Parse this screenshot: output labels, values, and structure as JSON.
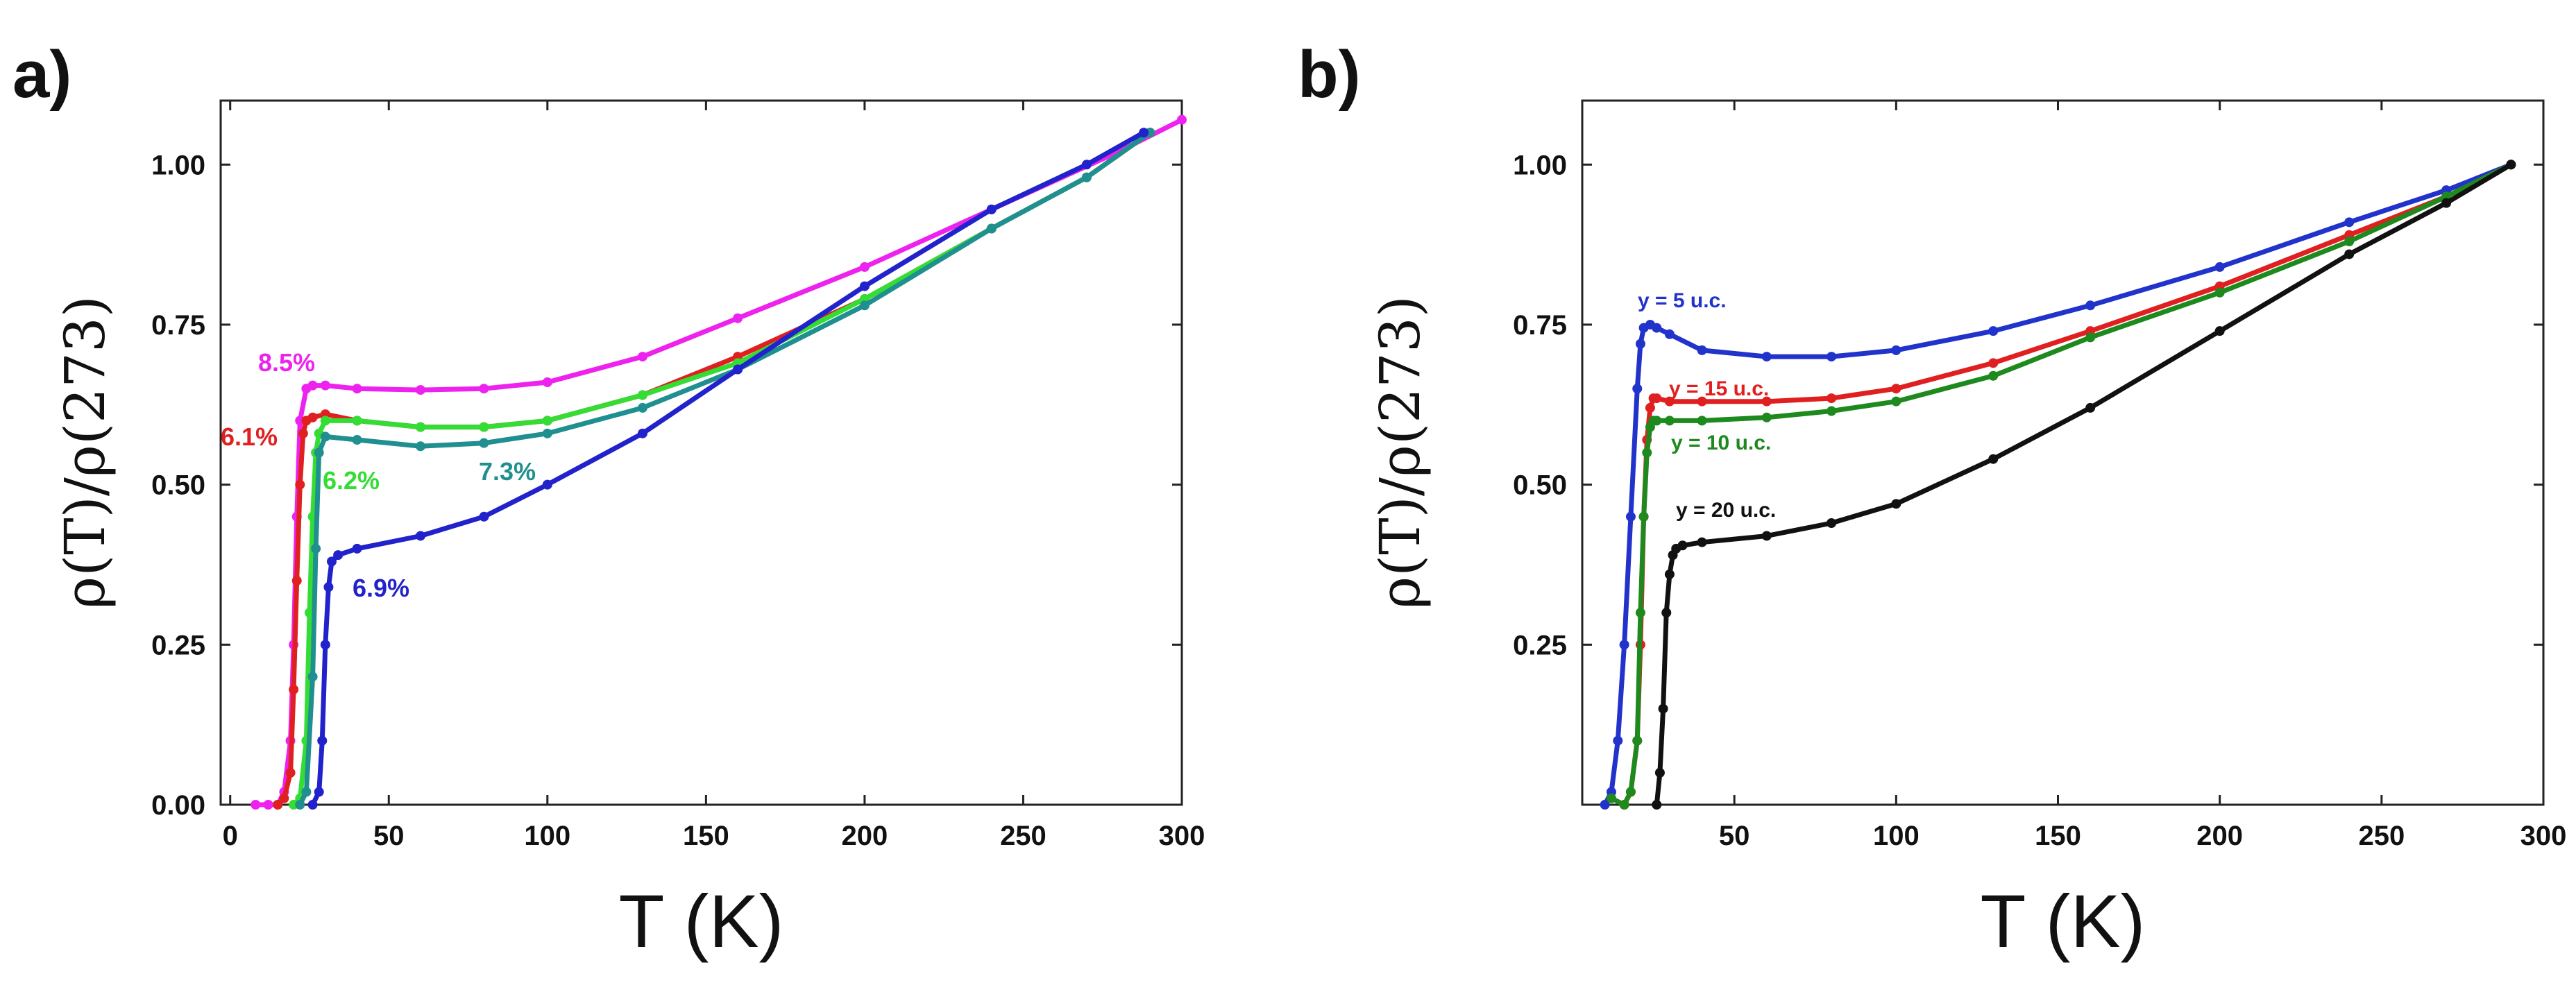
{
  "chart_data": [
    {
      "panel": "a)",
      "type": "line",
      "xlabel": "T (K)",
      "ylabel": "ρ(T)/ρ(273)",
      "xlim": [
        -3,
        300
      ],
      "ylim": [
        0,
        1.1
      ],
      "xticks": [
        0,
        50,
        100,
        150,
        200,
        250,
        300
      ],
      "yticks": [
        0.0,
        0.25,
        0.5,
        0.75,
        1.0
      ],
      "xtick_labels": [
        "0",
        "50",
        "100",
        "150",
        "200",
        "250",
        "300"
      ],
      "ytick_labels": [
        "0.00",
        "0.25",
        "0.50",
        "0.75",
        "1.00"
      ],
      "series": [
        {
          "name": "8.5%",
          "color": "#ee22ee",
          "x": [
            8,
            12,
            15,
            17,
            19,
            20,
            21,
            22,
            24,
            26,
            30,
            40,
            60,
            80,
            100,
            130,
            160,
            200,
            240,
            280,
            300
          ],
          "y": [
            0,
            0,
            0,
            0.02,
            0.1,
            0.25,
            0.45,
            0.6,
            0.65,
            0.655,
            0.655,
            0.65,
            0.648,
            0.65,
            0.66,
            0.7,
            0.76,
            0.84,
            0.93,
            1.02,
            1.07
          ]
        },
        {
          "name": "6.1%",
          "color": "#e02020",
          "x": [
            15,
            17,
            19,
            20,
            21,
            22,
            23,
            24,
            26,
            30,
            40,
            60,
            80,
            100,
            130,
            160,
            200,
            240,
            270,
            290
          ],
          "y": [
            0,
            0.01,
            0.05,
            0.18,
            0.35,
            0.5,
            0.58,
            0.6,
            0.605,
            0.61,
            0.6,
            0.59,
            0.59,
            0.6,
            0.64,
            0.7,
            0.79,
            0.9,
            0.98,
            1.05
          ]
        },
        {
          "name": "6.2%",
          "color": "#33dd33",
          "x": [
            20,
            22,
            24,
            25,
            26,
            27,
            28,
            30,
            40,
            60,
            80,
            100,
            130,
            160,
            200,
            240,
            270,
            290
          ],
          "y": [
            0,
            0.01,
            0.1,
            0.3,
            0.45,
            0.55,
            0.58,
            0.6,
            0.6,
            0.59,
            0.59,
            0.6,
            0.64,
            0.69,
            0.79,
            0.9,
            0.98,
            1.05
          ]
        },
        {
          "name": "7.3%",
          "color": "#208f8f",
          "x": [
            22,
            24,
            26,
            27,
            28,
            30,
            40,
            60,
            80,
            100,
            130,
            160,
            200,
            240,
            270,
            290
          ],
          "y": [
            0,
            0.02,
            0.2,
            0.4,
            0.55,
            0.575,
            0.57,
            0.56,
            0.565,
            0.58,
            0.62,
            0.68,
            0.78,
            0.9,
            0.98,
            1.05
          ]
        },
        {
          "name": "6.9%",
          "color": "#2222cc",
          "x": [
            26,
            28,
            29,
            30,
            31,
            32,
            34,
            40,
            60,
            80,
            100,
            130,
            160,
            200,
            240,
            270,
            288
          ],
          "y": [
            0,
            0.02,
            0.1,
            0.25,
            0.34,
            0.38,
            0.39,
            0.4,
            0.42,
            0.45,
            0.5,
            0.58,
            0.68,
            0.81,
            0.93,
            1.0,
            1.05
          ]
        }
      ],
      "annotations": [
        {
          "text": "8.5%",
          "color": "#ee22ee"
        },
        {
          "text": "6.1%",
          "color": "#e02020"
        },
        {
          "text": "6.2%",
          "color": "#33dd33"
        },
        {
          "text": "7.3%",
          "color": "#208f8f"
        },
        {
          "text": "6.9%",
          "color": "#2222cc"
        }
      ]
    },
    {
      "panel": "b)",
      "type": "line",
      "xlabel": "T (K)",
      "ylabel": "ρ(T)/ρ(273)",
      "xlim": [
        3,
        300
      ],
      "ylim": [
        0,
        1.1
      ],
      "xticks": [
        50,
        100,
        150,
        200,
        250,
        300
      ],
      "yticks": [
        0.25,
        0.5,
        0.75,
        1.0
      ],
      "xtick_labels": [
        "50",
        "100",
        "150",
        "200",
        "250",
        "300"
      ],
      "ytick_labels": [
        "0.25",
        "0.50",
        "0.75",
        "1.00"
      ],
      "series": [
        {
          "name": "y = 5 u.c.",
          "color": "#2233cc",
          "x": [
            10,
            12,
            14,
            16,
            18,
            20,
            21,
            22,
            24,
            26,
            30,
            40,
            60,
            80,
            100,
            130,
            160,
            200,
            240,
            270,
            290
          ],
          "y": [
            0,
            0.02,
            0.1,
            0.25,
            0.45,
            0.65,
            0.72,
            0.745,
            0.75,
            0.745,
            0.735,
            0.71,
            0.7,
            0.7,
            0.71,
            0.74,
            0.78,
            0.84,
            0.91,
            0.96,
            1.0
          ]
        },
        {
          "name": "y = 15 u.c.",
          "color": "#e02020",
          "x": [
            16,
            18,
            20,
            21,
            22,
            23,
            24,
            25,
            26,
            30,
            40,
            60,
            80,
            100,
            130,
            160,
            200,
            240,
            270,
            290
          ],
          "y": [
            0,
            0.02,
            0.1,
            0.25,
            0.45,
            0.57,
            0.62,
            0.635,
            0.635,
            0.63,
            0.63,
            0.63,
            0.635,
            0.65,
            0.69,
            0.74,
            0.81,
            0.89,
            0.95,
            1.0
          ]
        },
        {
          "name": "y = 10 u.c.",
          "color": "#1e8a1e",
          "x": [
            12,
            16,
            18,
            20,
            21,
            22,
            23,
            24,
            25,
            26,
            30,
            40,
            60,
            80,
            100,
            130,
            160,
            200,
            240,
            270,
            290
          ],
          "y": [
            0.01,
            0,
            0.02,
            0.1,
            0.3,
            0.45,
            0.55,
            0.59,
            0.6,
            0.6,
            0.6,
            0.6,
            0.605,
            0.615,
            0.63,
            0.67,
            0.73,
            0.8,
            0.88,
            0.95,
            1.0
          ]
        },
        {
          "name": "y = 20 u.c.",
          "color": "#111111",
          "x": [
            26,
            27,
            28,
            29,
            30,
            31,
            32,
            34,
            40,
            60,
            80,
            100,
            130,
            160,
            200,
            240,
            270,
            290
          ],
          "y": [
            0,
            0.05,
            0.15,
            0.3,
            0.36,
            0.39,
            0.4,
            0.405,
            0.41,
            0.42,
            0.44,
            0.47,
            0.54,
            0.62,
            0.74,
            0.86,
            0.94,
            1.0
          ]
        }
      ],
      "annotations": [
        {
          "text": "y = 5 u.c.",
          "color": "#2233cc"
        },
        {
          "text": "y = 15 u.c.",
          "color": "#e02020"
        },
        {
          "text": "y = 10 u.c.",
          "color": "#1e8a1e"
        },
        {
          "text": "y = 20 u.c.",
          "color": "#111111"
        }
      ]
    }
  ]
}
